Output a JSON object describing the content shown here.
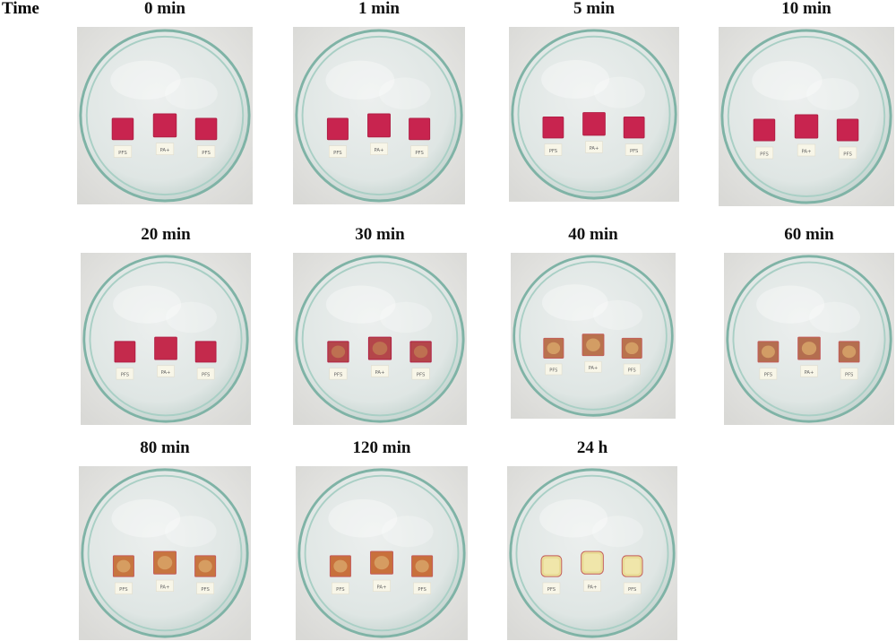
{
  "time_label": "Time",
  "panels": [
    {
      "label": "0 min",
      "tags": [
        "PFS",
        "PA+",
        "PFS"
      ],
      "sample_color": "#c8244f",
      "stage": 0
    },
    {
      "label": "1 min",
      "tags": [
        "PFS",
        "PA+",
        "PFS"
      ],
      "sample_color": "#c8244f",
      "stage": 0
    },
    {
      "label": "5 min",
      "tags": [
        "PFS",
        "PA+",
        "PFS"
      ],
      "sample_color": "#c8244f",
      "stage": 0
    },
    {
      "label": "10 min",
      "tags": [
        "PFS",
        "PA+",
        "PFS"
      ],
      "sample_color": "#c8244f",
      "stage": 0
    },
    {
      "label": "20 min",
      "tags": [
        "PFS",
        "PA+",
        "PFS"
      ],
      "sample_color": "#c42a4c",
      "stage": 1
    },
    {
      "label": "30 min",
      "tags": [
        "PFS",
        "PA+",
        "PFS"
      ],
      "sample_color": "#b4464a",
      "stage": 2
    },
    {
      "label": "40 min",
      "tags": [
        "PFS",
        "PA+",
        "PFS"
      ],
      "sample_color": "#b9724d",
      "stage": 3
    },
    {
      "label": "60 min",
      "tags": [
        "PFS",
        "PA+",
        "PFS"
      ],
      "sample_color": "#b46e4f",
      "stage": 3
    },
    {
      "label": "80 min",
      "tags": [
        "PFS",
        "PA+",
        "PFS"
      ],
      "sample_color": "#c7753f",
      "stage": 4
    },
    {
      "label": "120 min",
      "tags": [
        "PFS",
        "PA+",
        "PFS"
      ],
      "sample_color": "#c8703c",
      "stage": 4
    },
    {
      "label": "24 h",
      "tags": [
        "PFS",
        "PA+",
        "PFS"
      ],
      "sample_color": "#e8dc96",
      "stage": 5
    }
  ]
}
